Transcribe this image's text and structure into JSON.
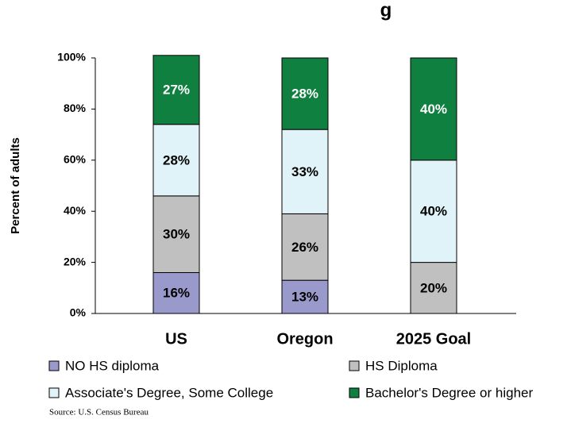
{
  "chart_data": {
    "type": "stacked_bar",
    "title": "g",
    "y_label": "Percent of adults",
    "categories": [
      "US",
      "Oregon",
      "2025 Goal"
    ],
    "series": [
      {
        "name": "NO HS diploma",
        "color": "#9999cc",
        "values": [
          16,
          13,
          0
        ],
        "value_labels": [
          "16%",
          "13%",
          null
        ]
      },
      {
        "name": "HS Diploma",
        "color": "#c0c0c0",
        "values": [
          30,
          26,
          20
        ],
        "value_labels": [
          "30%",
          "26%",
          "20%"
        ]
      },
      {
        "name": "Associate's Degree, Some College",
        "color": "#dff3f8",
        "values": [
          28,
          33,
          40
        ],
        "value_labels": [
          "28%",
          "33%",
          "40%"
        ]
      },
      {
        "name": "Bachelor's Degree or higher",
        "color": "#108040",
        "values": [
          27,
          28,
          40
        ],
        "value_labels": [
          "27%",
          "28%",
          "40%"
        ]
      }
    ],
    "ylim": [
      0,
      100
    ],
    "yticks": [
      {
        "value": 0,
        "label": "0%"
      },
      {
        "value": 20,
        "label": "20%"
      },
      {
        "value": 40,
        "label": "40%"
      },
      {
        "value": 60,
        "label": "60%"
      },
      {
        "value": 80,
        "label": "80%"
      },
      {
        "value": 100,
        "label": "100%"
      }
    ],
    "source": "Source: U.S. Census Bureau"
  }
}
